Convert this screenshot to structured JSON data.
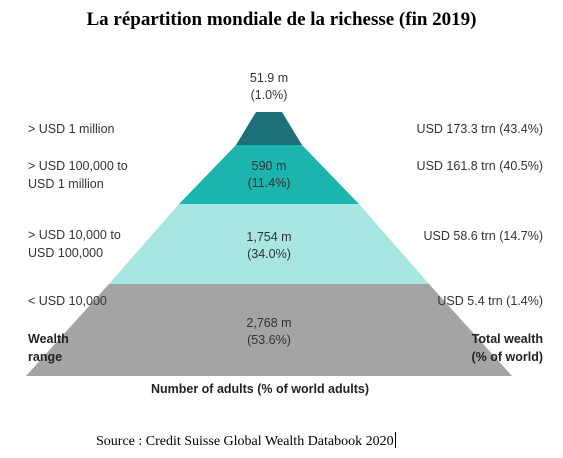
{
  "title": "La répartition mondiale de la richesse (fin 2019)",
  "colors": {
    "tier1": "#1d6f79",
    "tier2": "#1bb5ad",
    "tier3": "#a7e6e1",
    "tier4": "#a4a4a4"
  },
  "tiers": [
    {
      "range": "> USD 1 million",
      "adults": "51.9 m",
      "share": "(1.0%)",
      "wealth": "USD 173.3 trn (43.4%)"
    },
    {
      "range_line1": "> USD 100,000 to",
      "range_line2": "USD 1 million",
      "adults": "590 m",
      "share": "(11.4%)",
      "wealth": "USD 161.8 trn (40.5%)"
    },
    {
      "range_line1": "> USD 10,000 to",
      "range_line2": "USD 100,000",
      "adults": "1,754 m",
      "share": "(34.0%)",
      "wealth": "USD 58.6 trn (14.7%)"
    },
    {
      "range": "< USD 10,000",
      "adults": "2,768 m",
      "share": "(53.6%)",
      "wealth": "USD 5.4 trn (1.4%)"
    }
  ],
  "left_header_line1": "Wealth",
  "left_header_line2": "range",
  "right_header_line1": "Total wealth",
  "right_header_line2": "(% of world)",
  "axis_title": "Number of adults (% of world adults)",
  "source": "Source : Credit Suisse Global Wealth Databook 2020"
}
